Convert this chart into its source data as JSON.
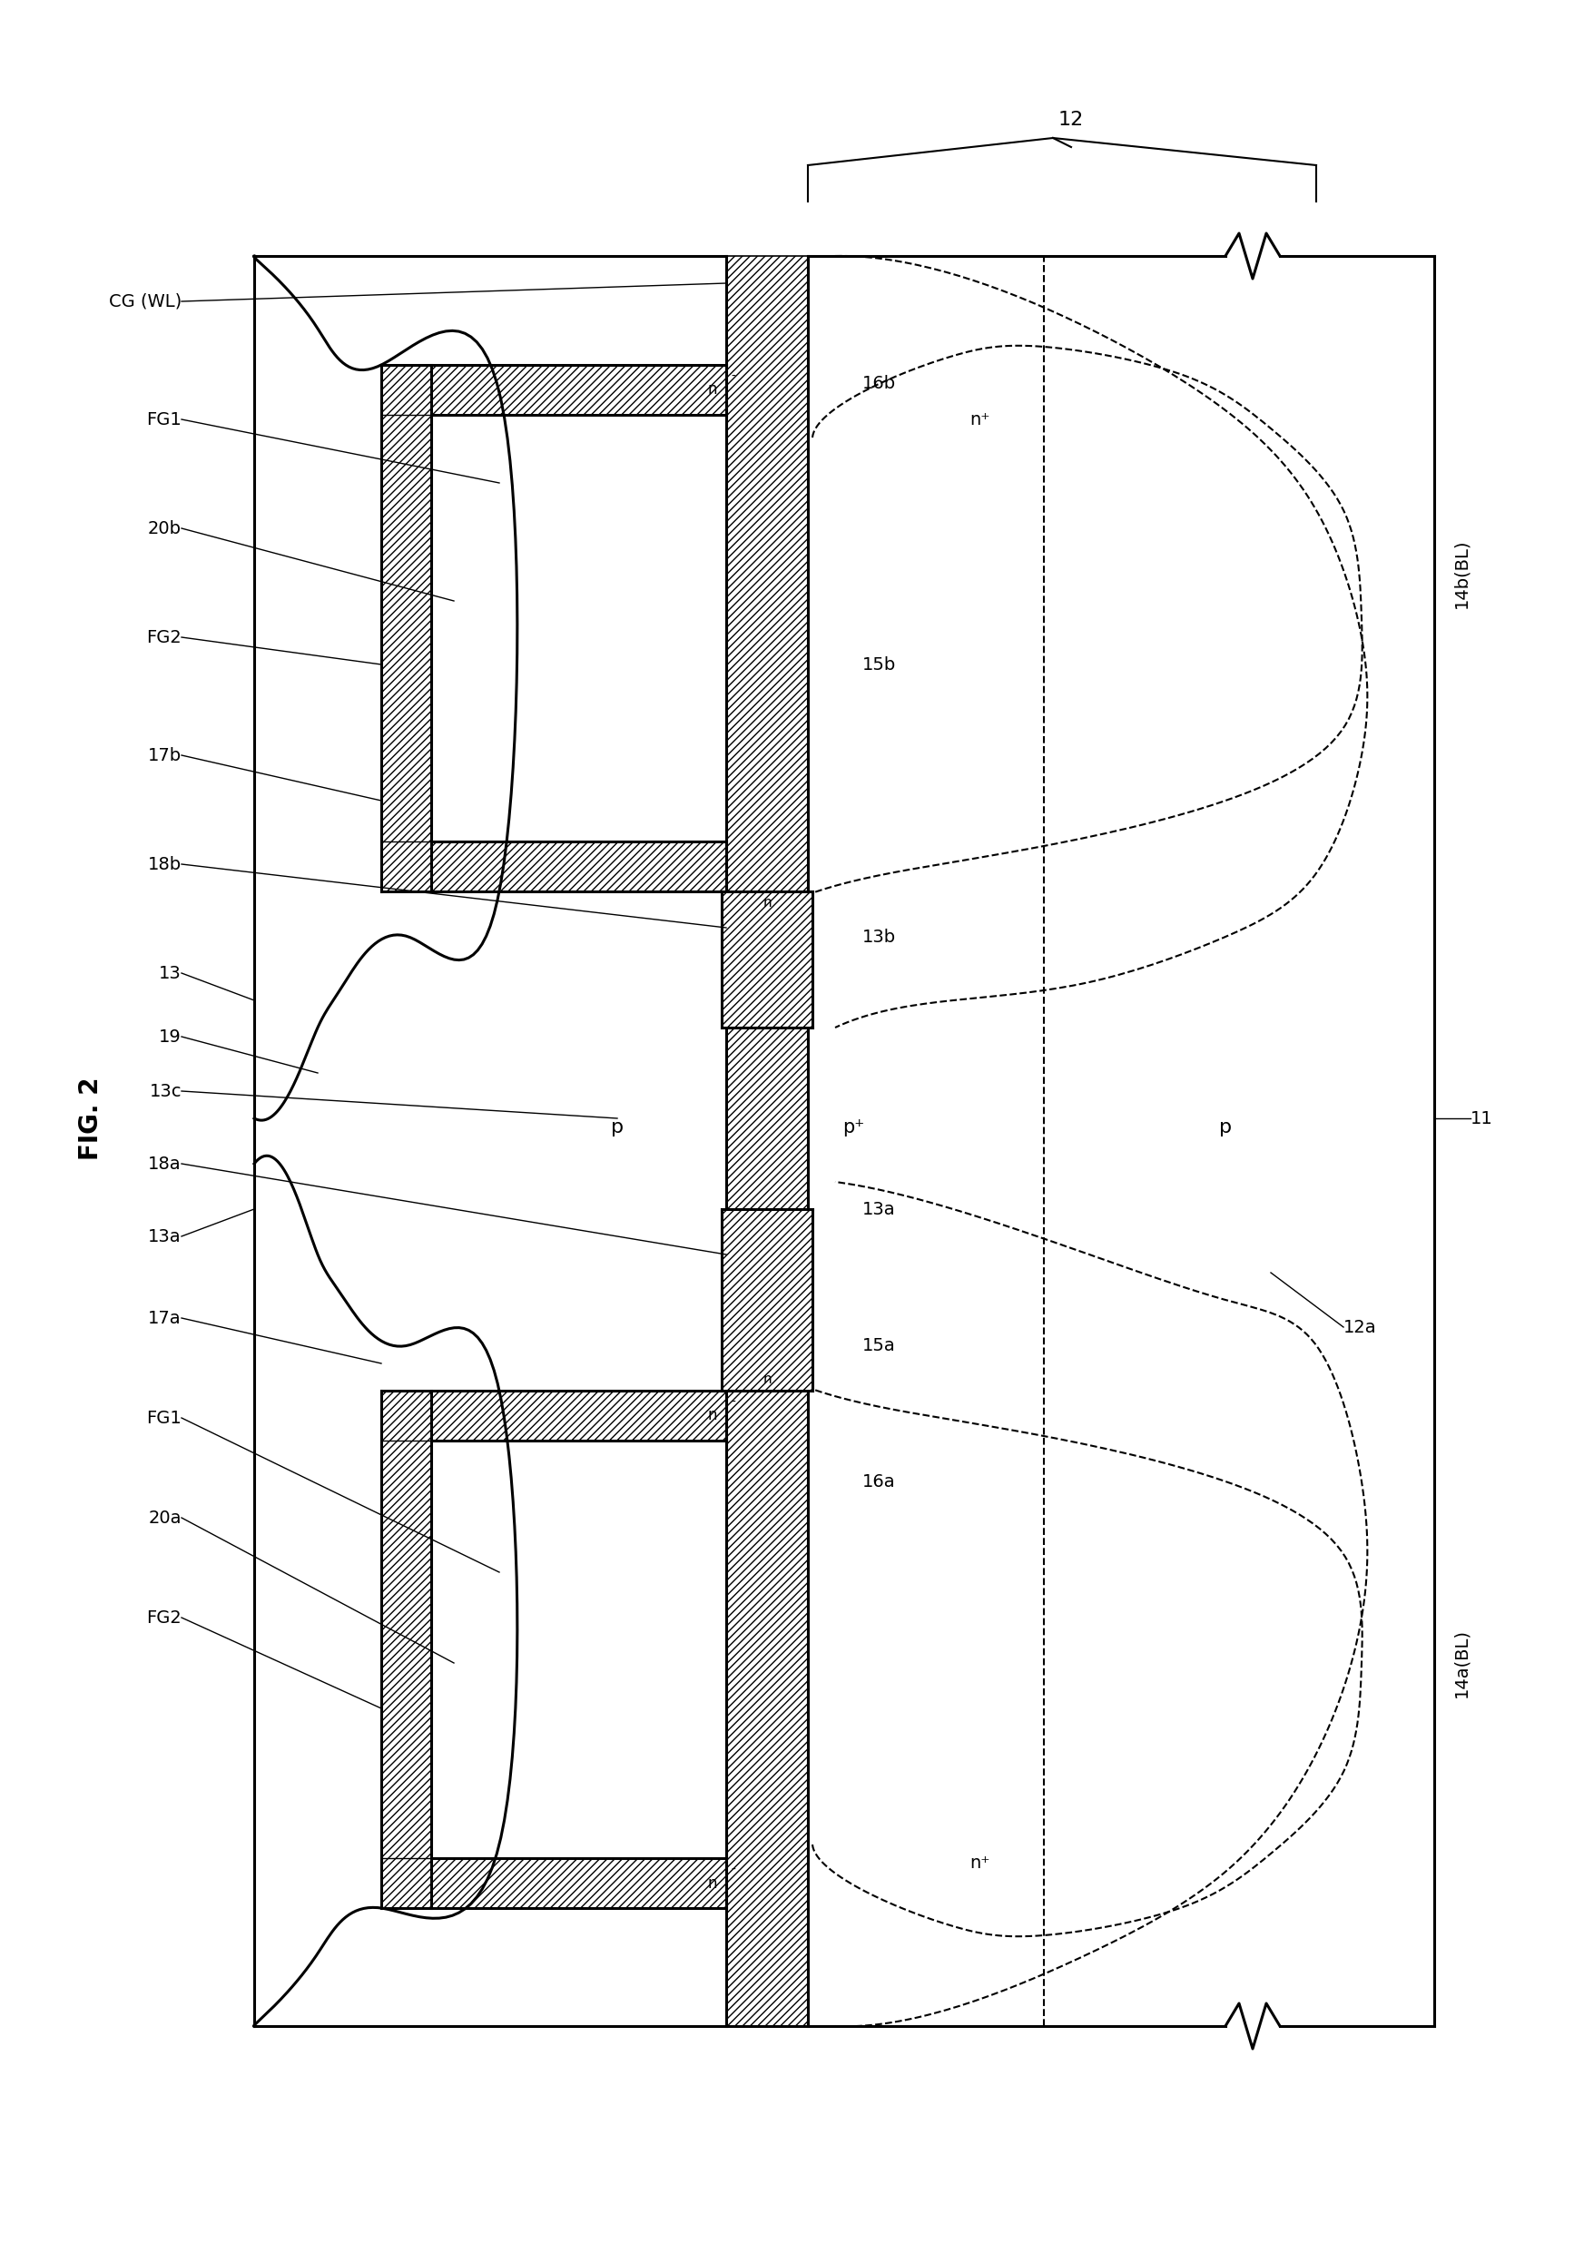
{
  "fig_label": "FIG. 2",
  "label_12": "12",
  "label_11": "11",
  "label_13": "13",
  "label_13a": "13a",
  "label_13b": "13b",
  "label_13c": "13c",
  "label_14a": "14a(BL)",
  "label_14b": "14b(BL)",
  "label_15a": "15a",
  "label_15b": "15b",
  "label_16a": "16a",
  "label_16b": "16b",
  "label_17a": "17a",
  "label_17b": "17b",
  "label_18a": "18a",
  "label_18b": "18b",
  "label_19": "19",
  "label_20a": "20a",
  "label_20b": "20b",
  "label_FG1": "FG1",
  "label_FG2": "FG2",
  "label_CG": "CG (WL)",
  "label_p": "p",
  "label_pp": "p⁺",
  "label_np": "n⁺",
  "bg_color": "#ffffff",
  "line_color": "#000000"
}
